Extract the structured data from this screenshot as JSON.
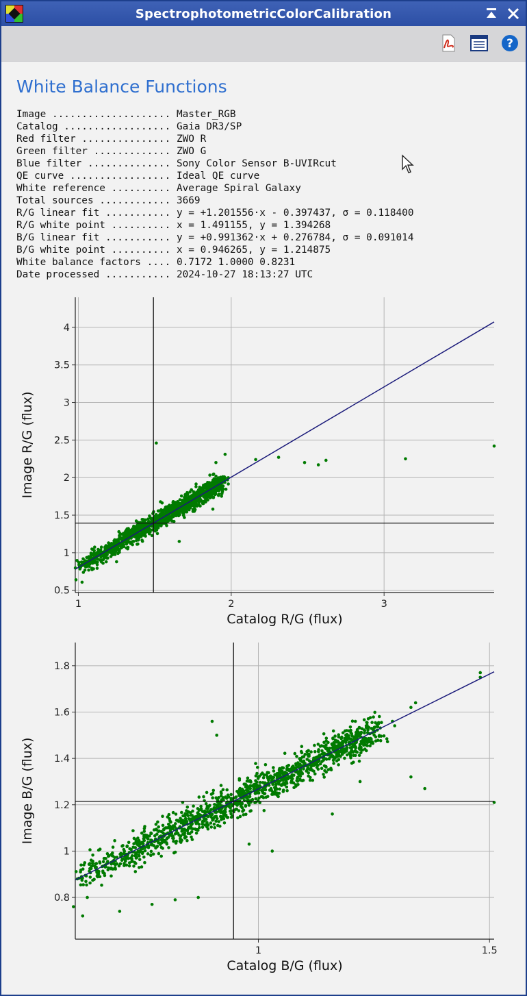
{
  "window": {
    "title": "SpectrophotometricColorCalibration",
    "buttons": [
      "minimize",
      "close"
    ]
  },
  "toolbar": {
    "icons": [
      "pdf-icon",
      "document-icon",
      "help-icon"
    ]
  },
  "report": {
    "heading": "White Balance Functions",
    "rows": [
      {
        "label": "Image ....................",
        "value": "Master_RGB"
      },
      {
        "label": "Catalog ..................",
        "value": "Gaia DR3/SP"
      },
      {
        "label": "Red filter ...............",
        "value": "ZWO R"
      },
      {
        "label": "Green filter .............",
        "value": "ZWO G"
      },
      {
        "label": "Blue filter ..............",
        "value": "Sony Color Sensor B-UVIRcut"
      },
      {
        "label": "QE curve .................",
        "value": "Ideal QE curve"
      },
      {
        "label": "White reference ..........",
        "value": "Average Spiral Galaxy"
      },
      {
        "label": "Total sources ............",
        "value": "3669"
      },
      {
        "label": "R/G linear fit ...........",
        "value": "y = +1.201556·x - 0.397437, σ = 0.118400"
      },
      {
        "label": "R/G white point ..........",
        "value": "x = 1.491155, y = 1.394268"
      },
      {
        "label": "B/G linear fit ...........",
        "value": "y = +0.991362·x + 0.276784, σ = 0.091014"
      },
      {
        "label": "B/G white point ..........",
        "value": "x = 0.946265, y = 1.214875"
      },
      {
        "label": "White balance factors ....",
        "value": "0.7172 1.0000 0.8231"
      },
      {
        "label": "Date processed ...........",
        "value": "2024-10-27 18:13:27 UTC"
      }
    ]
  },
  "chart_data": [
    {
      "type": "scatter",
      "xlabel": "Catalog R/G (flux)",
      "ylabel": "Image R/G (flux)",
      "xlim": [
        0.98,
        3.72
      ],
      "ylim": [
        0.47,
        4.4
      ],
      "xticks": [
        "1",
        "2",
        "3"
      ],
      "yticks": [
        "0.5",
        "1",
        "1.5",
        "2",
        "2.5",
        "3",
        "3.5",
        "4"
      ],
      "grid": true,
      "fit": {
        "slope": 1.201556,
        "intercept": -0.397437
      },
      "white_point": {
        "x": 1.491155,
        "y": 1.394268
      },
      "points": {
        "color": "#007a00",
        "total_sources": 3669,
        "trend_range_x": [
          1.0,
          1.95
        ],
        "outliers": [
          [
            1.01,
            0.83
          ],
          [
            1.51,
            2.46
          ],
          [
            1.9,
            2.2
          ],
          [
            1.96,
            2.31
          ],
          [
            2.16,
            2.24
          ],
          [
            2.31,
            2.27
          ],
          [
            2.48,
            2.2
          ],
          [
            2.57,
            2.17
          ],
          [
            2.62,
            2.23
          ],
          [
            3.14,
            2.25
          ],
          [
            3.72,
            2.42
          ],
          [
            1.88,
            1.58
          ],
          [
            1.66,
            1.15
          ],
          [
            1.25,
            0.88
          ],
          [
            1.38,
            1.2
          ],
          [
            1.75,
            1.55
          ]
        ]
      }
    },
    {
      "type": "scatter",
      "xlabel": "Catalog B/G (flux)",
      "ylabel": "Image B/G (flux)",
      "xlim": [
        0.604,
        1.51
      ],
      "ylim": [
        0.62,
        1.9
      ],
      "xticks": [
        "1",
        "1.5"
      ],
      "yticks": [
        "0.8",
        "1",
        "1.2",
        "1.4",
        "1.6",
        "1.8"
      ],
      "grid": true,
      "fit": {
        "slope": 0.991362,
        "intercept": 0.276784
      },
      "white_point": {
        "x": 0.946265,
        "y": 1.214875
      },
      "points": {
        "color": "#007a00",
        "total_sources": 3669,
        "trend_range_x": [
          0.6,
          1.25
        ],
        "outliers": [
          [
            0.6,
            0.76
          ],
          [
            0.62,
            0.72
          ],
          [
            0.63,
            0.8
          ],
          [
            0.7,
            0.74
          ],
          [
            0.77,
            0.77
          ],
          [
            0.82,
            0.79
          ],
          [
            0.87,
            0.8
          ],
          [
            0.9,
            1.56
          ],
          [
            0.91,
            1.5
          ],
          [
            1.48,
            1.77
          ],
          [
            1.48,
            1.75
          ],
          [
            1.51,
            1.21
          ],
          [
            1.36,
            1.27
          ],
          [
            1.33,
            1.32
          ],
          [
            1.29,
            1.56
          ],
          [
            1.26,
            1.55
          ],
          [
            1.33,
            1.62
          ],
          [
            1.34,
            1.64
          ],
          [
            0.98,
            1.03
          ],
          [
            1.03,
            1.0
          ],
          [
            1.16,
            1.16
          ],
          [
            1.22,
            1.3
          ]
        ]
      }
    }
  ]
}
